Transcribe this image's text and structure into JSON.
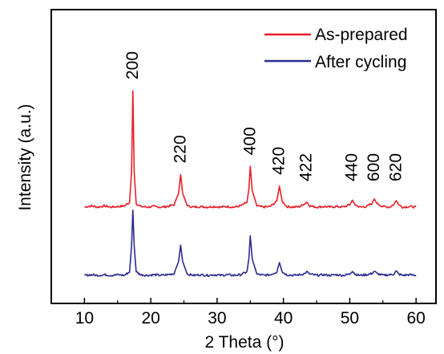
{
  "chart_data": {
    "type": "line",
    "xlabel": "2 Theta (°)",
    "ylabel": "Intensity (a.u.)",
    "xlim": [
      5,
      63
    ],
    "x_ticks": [
      "10",
      "20",
      "30",
      "40",
      "50",
      "60"
    ],
    "y_ticks": [],
    "grid": false,
    "legend": "top-right",
    "series": [
      {
        "name": "As-prepared",
        "color": "#e8202a",
        "baseline": 1.0,
        "x": [
          10,
          11,
          12,
          13,
          14,
          15,
          16,
          16.8,
          17.1,
          17.3,
          17.5,
          17.8,
          18.5,
          19.5,
          20.5,
          21.5,
          22.5,
          23.5,
          24.2,
          24.5,
          24.8,
          25.5,
          26.5,
          27.5,
          28.5,
          29.5,
          30.5,
          31.5,
          32.5,
          33.5,
          34.5,
          34.8,
          35.0,
          35.3,
          36,
          37,
          38,
          39.0,
          39.4,
          39.8,
          40.5,
          41.5,
          42.5,
          43.2,
          43.5,
          44,
          45,
          46,
          47,
          48,
          49,
          50.0,
          50.4,
          50.8,
          51.5,
          52.5,
          53.3,
          53.7,
          54.1,
          55,
          56,
          56.6,
          57.0,
          57.4,
          58,
          59,
          60
        ],
        "y": [
          1.0,
          1.1,
          1.0,
          1.1,
          1.0,
          1.05,
          1.1,
          1.4,
          4.0,
          11.0,
          4.0,
          1.3,
          1.05,
          1.0,
          1.05,
          1.0,
          1.05,
          1.2,
          2.2,
          3.8,
          2.2,
          1.1,
          1.0,
          1.05,
          1.0,
          1.05,
          1.0,
          1.05,
          1.0,
          1.1,
          1.4,
          2.6,
          4.5,
          2.4,
          1.1,
          1.0,
          1.05,
          1.5,
          2.8,
          1.5,
          1.05,
          1.0,
          1.05,
          1.3,
          1.45,
          1.1,
          1.0,
          1.05,
          1.0,
          1.05,
          1.0,
          1.2,
          1.6,
          1.2,
          1.0,
          1.05,
          1.3,
          1.7,
          1.3,
          1.05,
          1.0,
          1.2,
          1.55,
          1.2,
          1.0,
          1.05,
          1.0
        ]
      },
      {
        "name": "After cycling",
        "color": "#2b2b8f",
        "baseline": 0.0,
        "x": [
          10,
          11,
          12,
          13,
          14,
          15,
          16,
          16.8,
          17.1,
          17.3,
          17.5,
          17.8,
          18.5,
          19.5,
          20.5,
          21.5,
          22.5,
          23.5,
          24.2,
          24.5,
          24.8,
          25.5,
          26.5,
          27.5,
          28.5,
          29.5,
          30.5,
          31.5,
          32.5,
          33.5,
          34.5,
          34.8,
          35.0,
          35.3,
          36,
          37,
          38,
          39.0,
          39.4,
          39.8,
          40.5,
          41.5,
          42.5,
          43.2,
          43.5,
          44,
          45,
          46,
          47,
          48,
          49,
          50.0,
          50.4,
          50.8,
          51.5,
          52.5,
          53.3,
          53.7,
          54.1,
          55,
          56,
          56.6,
          57.0,
          57.4,
          58,
          59,
          60
        ],
        "y": [
          0.0,
          0.05,
          0.0,
          0.05,
          0.0,
          0.05,
          0.0,
          0.3,
          2.5,
          5.6,
          2.5,
          0.3,
          0.05,
          0.0,
          0.05,
          0.0,
          0.05,
          0.15,
          1.2,
          2.6,
          1.2,
          0.1,
          0.0,
          0.05,
          0.0,
          0.05,
          0.0,
          0.05,
          0.0,
          0.05,
          0.3,
          1.5,
          3.4,
          1.4,
          0.1,
          0.0,
          0.05,
          0.3,
          1.1,
          0.3,
          0.05,
          0.0,
          0.05,
          0.15,
          0.3,
          0.1,
          0.0,
          0.05,
          0.0,
          0.05,
          0.0,
          0.1,
          0.4,
          0.1,
          0.0,
          0.05,
          0.15,
          0.35,
          0.15,
          0.0,
          0.05,
          0.1,
          0.35,
          0.1,
          0.0,
          0.05,
          0.0
        ]
      }
    ],
    "annotations": [
      {
        "text": "200",
        "x": 17.3
      },
      {
        "text": "220",
        "x": 24.5
      },
      {
        "text": "400",
        "x": 35.0
      },
      {
        "text": "420",
        "x": 39.4
      },
      {
        "text": "422",
        "x": 43.5
      },
      {
        "text": "440",
        "x": 50.4
      },
      {
        "text": "600",
        "x": 53.7
      },
      {
        "text": "620",
        "x": 57.0
      }
    ]
  }
}
